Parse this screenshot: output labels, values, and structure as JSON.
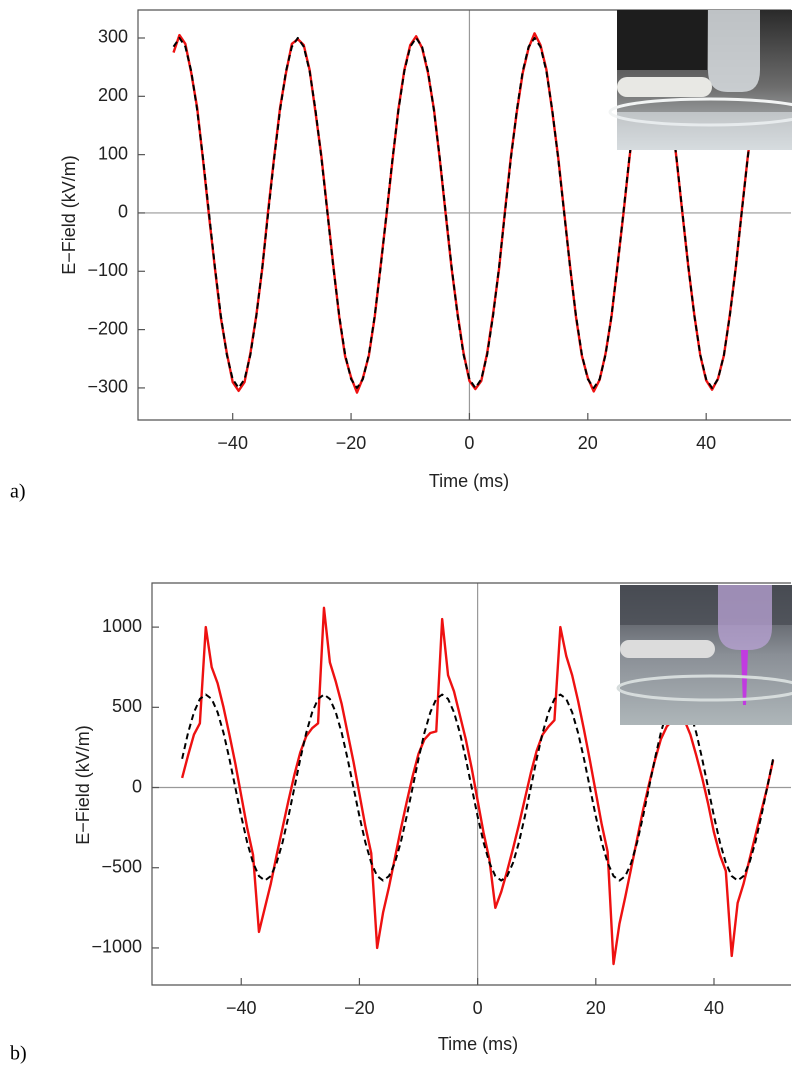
{
  "chart_data": [
    {
      "type": "line",
      "panel_label": "a)",
      "x_label": "Time (ms)",
      "y_label": "E−Field (kV/m)",
      "xlim": [
        -56,
        54.5
      ],
      "ylim": [
        -355,
        348
      ],
      "xticks": [
        {
          "value": -40,
          "label": "−40"
        },
        {
          "value": -20,
          "label": "−20"
        },
        0,
        20,
        40
      ],
      "yticks": [
        {
          "value": -300,
          "label": "−300"
        },
        {
          "value": -200,
          "label": "−200"
        },
        {
          "value": -100,
          "label": "−100"
        },
        0,
        100,
        200,
        300
      ],
      "x": [
        -50,
        -49,
        -48,
        -47,
        -46,
        -45,
        -44,
        -43,
        -42,
        -41,
        -40,
        -39,
        -38,
        -37,
        -36,
        -35,
        -34,
        -33,
        -32,
        -31,
        -30,
        -29,
        -28,
        -27,
        -26,
        -25,
        -24,
        -23,
        -22,
        -21,
        -20,
        -19,
        -18,
        -17,
        -16,
        -15,
        -14,
        -13,
        -12,
        -11,
        -10,
        -9,
        -8,
        -7,
        -6,
        -5,
        -4,
        -3,
        -2,
        -1,
        0,
        1,
        2,
        3,
        4,
        5,
        6,
        7,
        8,
        9,
        10,
        11,
        12,
        13,
        14,
        15,
        16,
        17,
        18,
        19,
        20,
        21,
        22,
        23,
        24,
        25,
        26,
        27,
        28,
        29,
        30,
        31,
        32,
        33,
        34,
        35,
        36,
        37,
        38,
        39,
        40,
        41,
        42,
        43,
        44,
        45,
        46,
        47,
        48,
        49,
        50
      ],
      "series": [
        {
          "color": "#ee1111",
          "linestyle": "solid",
          "values": [
            275,
            305,
            290,
            240,
            180,
            90,
            -5,
            -95,
            -180,
            -240,
            -290,
            -305,
            -290,
            -240,
            -175,
            -95,
            5,
            95,
            180,
            240,
            290,
            298,
            288,
            245,
            172,
            96,
            3,
            -90,
            -178,
            -246,
            -282,
            -308,
            -283,
            -245,
            -178,
            -90,
            -2,
            90,
            178,
            245,
            288,
            303,
            283,
            240,
            178,
            91,
            -3,
            -96,
            -173,
            -240,
            -288,
            -302,
            -288,
            -240,
            -173,
            -96,
            3,
            96,
            173,
            240,
            283,
            308,
            288,
            246,
            174,
            95,
            2,
            -91,
            -178,
            -245,
            -283,
            -306,
            -286,
            -241,
            -178,
            -91,
            -3,
            91,
            178,
            245,
            288,
            299,
            284,
            242,
            179,
            92,
            -2,
            -94,
            -175,
            -244,
            -287,
            -303,
            -284,
            -244,
            -174,
            -94,
            2,
            94,
            174,
            244,
            282
          ]
        },
        {
          "color": "#000000",
          "linestyle": "dashed",
          "values": [
            285,
            300,
            285,
            243,
            176,
            93,
            0,
            -93,
            -176,
            -243,
            -285,
            -300,
            -285,
            -243,
            -176,
            -93,
            0,
            93,
            176,
            243,
            285,
            300,
            285,
            243,
            176,
            93,
            0,
            -93,
            -176,
            -243,
            -285,
            -300,
            -285,
            -243,
            -176,
            -93,
            0,
            93,
            176,
            243,
            285,
            300,
            285,
            243,
            176,
            93,
            0,
            -93,
            -176,
            -243,
            -285,
            -300,
            -285,
            -243,
            -176,
            -93,
            0,
            93,
            176,
            243,
            285,
            300,
            285,
            243,
            176,
            93,
            0,
            -93,
            -176,
            -243,
            -285,
            -300,
            -285,
            -243,
            -176,
            -93,
            0,
            93,
            176,
            243,
            285,
            300,
            285,
            243,
            176,
            93,
            0,
            -93,
            -176,
            -243,
            -285,
            -300,
            -285,
            -243,
            -176,
            -93,
            0,
            93,
            176,
            243,
            285
          ]
        }
      ]
    },
    {
      "type": "line",
      "panel_label": "b)",
      "x_label": "Time (ms)",
      "y_label": "E−Field (kV/m)",
      "xlim": [
        -55.1,
        53.2
      ],
      "ylim": [
        -1231,
        1275
      ],
      "xticks": [
        {
          "value": -40,
          "label": "−40"
        },
        {
          "value": -20,
          "label": "−20"
        },
        0,
        20,
        40
      ],
      "yticks": [
        {
          "value": -1000,
          "label": "−1000"
        },
        {
          "value": -500,
          "label": "−500"
        },
        0,
        500,
        1000
      ],
      "x": [
        -50,
        -49,
        -48,
        -47,
        -46,
        -45,
        -44,
        -43,
        -42,
        -41,
        -40,
        -39,
        -38,
        -37,
        -36,
        -35,
        -34,
        -33,
        -32,
        -31,
        -30,
        -29,
        -28,
        -27,
        -26,
        -25,
        -24,
        -23,
        -22,
        -21,
        -20,
        -19,
        -18,
        -17,
        -16,
        -15,
        -14,
        -13,
        -12,
        -11,
        -10,
        -9,
        -8,
        -7,
        -6,
        -5,
        -4,
        -3,
        -2,
        -1,
        0,
        1,
        2,
        3,
        4,
        5,
        6,
        7,
        8,
        9,
        10,
        11,
        12,
        13,
        14,
        15,
        16,
        17,
        18,
        19,
        20,
        21,
        22,
        23,
        24,
        25,
        26,
        27,
        28,
        29,
        30,
        31,
        32,
        33,
        34,
        35,
        36,
        37,
        38,
        39,
        40,
        41,
        42,
        43,
        44,
        45,
        46,
        47,
        48,
        49,
        50
      ],
      "series": [
        {
          "color": "#ee1111",
          "linestyle": "solid",
          "values": [
            60,
            200,
            330,
            400,
            1000,
            750,
            650,
            500,
            330,
            150,
            -50,
            -250,
            -420,
            -900,
            -750,
            -600,
            -420,
            -250,
            -80,
            80,
            220,
            320,
            370,
            400,
            1120,
            780,
            660,
            520,
            340,
            160,
            -40,
            -240,
            -410,
            -1000,
            -780,
            -620,
            -440,
            -260,
            -90,
            70,
            210,
            300,
            340,
            350,
            1050,
            700,
            600,
            450,
            300,
            120,
            -80,
            -280,
            -450,
            -750,
            -650,
            -520,
            -380,
            -230,
            -70,
            90,
            230,
            330,
            380,
            420,
            1000,
            820,
            700,
            540,
            360,
            170,
            -30,
            -230,
            -400,
            -1100,
            -850,
            -680,
            -500,
            -320,
            -140,
            20,
            170,
            300,
            380,
            420,
            450,
            420,
            330,
            200,
            60,
            -100,
            -280,
            -420,
            -520,
            -1050,
            -720,
            -600,
            -450,
            -300,
            -150,
            0,
            170
          ]
        },
        {
          "color": "#000000",
          "linestyle": "dashed",
          "values": [
            179,
            341,
            469,
            552,
            580,
            552,
            469,
            341,
            179,
            0,
            -179,
            -341,
            -469,
            -552,
            -580,
            -552,
            -469,
            -341,
            -179,
            0,
            179,
            341,
            469,
            552,
            580,
            552,
            469,
            341,
            179,
            0,
            -179,
            -341,
            -469,
            -552,
            -580,
            -552,
            -469,
            -341,
            -179,
            0,
            179,
            341,
            469,
            552,
            580,
            552,
            469,
            341,
            179,
            0,
            -179,
            -341,
            -469,
            -552,
            -580,
            -552,
            -469,
            -341,
            -179,
            0,
            179,
            341,
            469,
            552,
            580,
            552,
            469,
            341,
            179,
            0,
            -179,
            -341,
            -469,
            -552,
            -580,
            -552,
            -469,
            -341,
            -179,
            0,
            179,
            341,
            469,
            552,
            580,
            552,
            469,
            341,
            179,
            0,
            -179,
            -341,
            -469,
            -552,
            -580,
            -552,
            -469,
            -341,
            -179,
            0,
            179
          ]
        }
      ]
    }
  ]
}
